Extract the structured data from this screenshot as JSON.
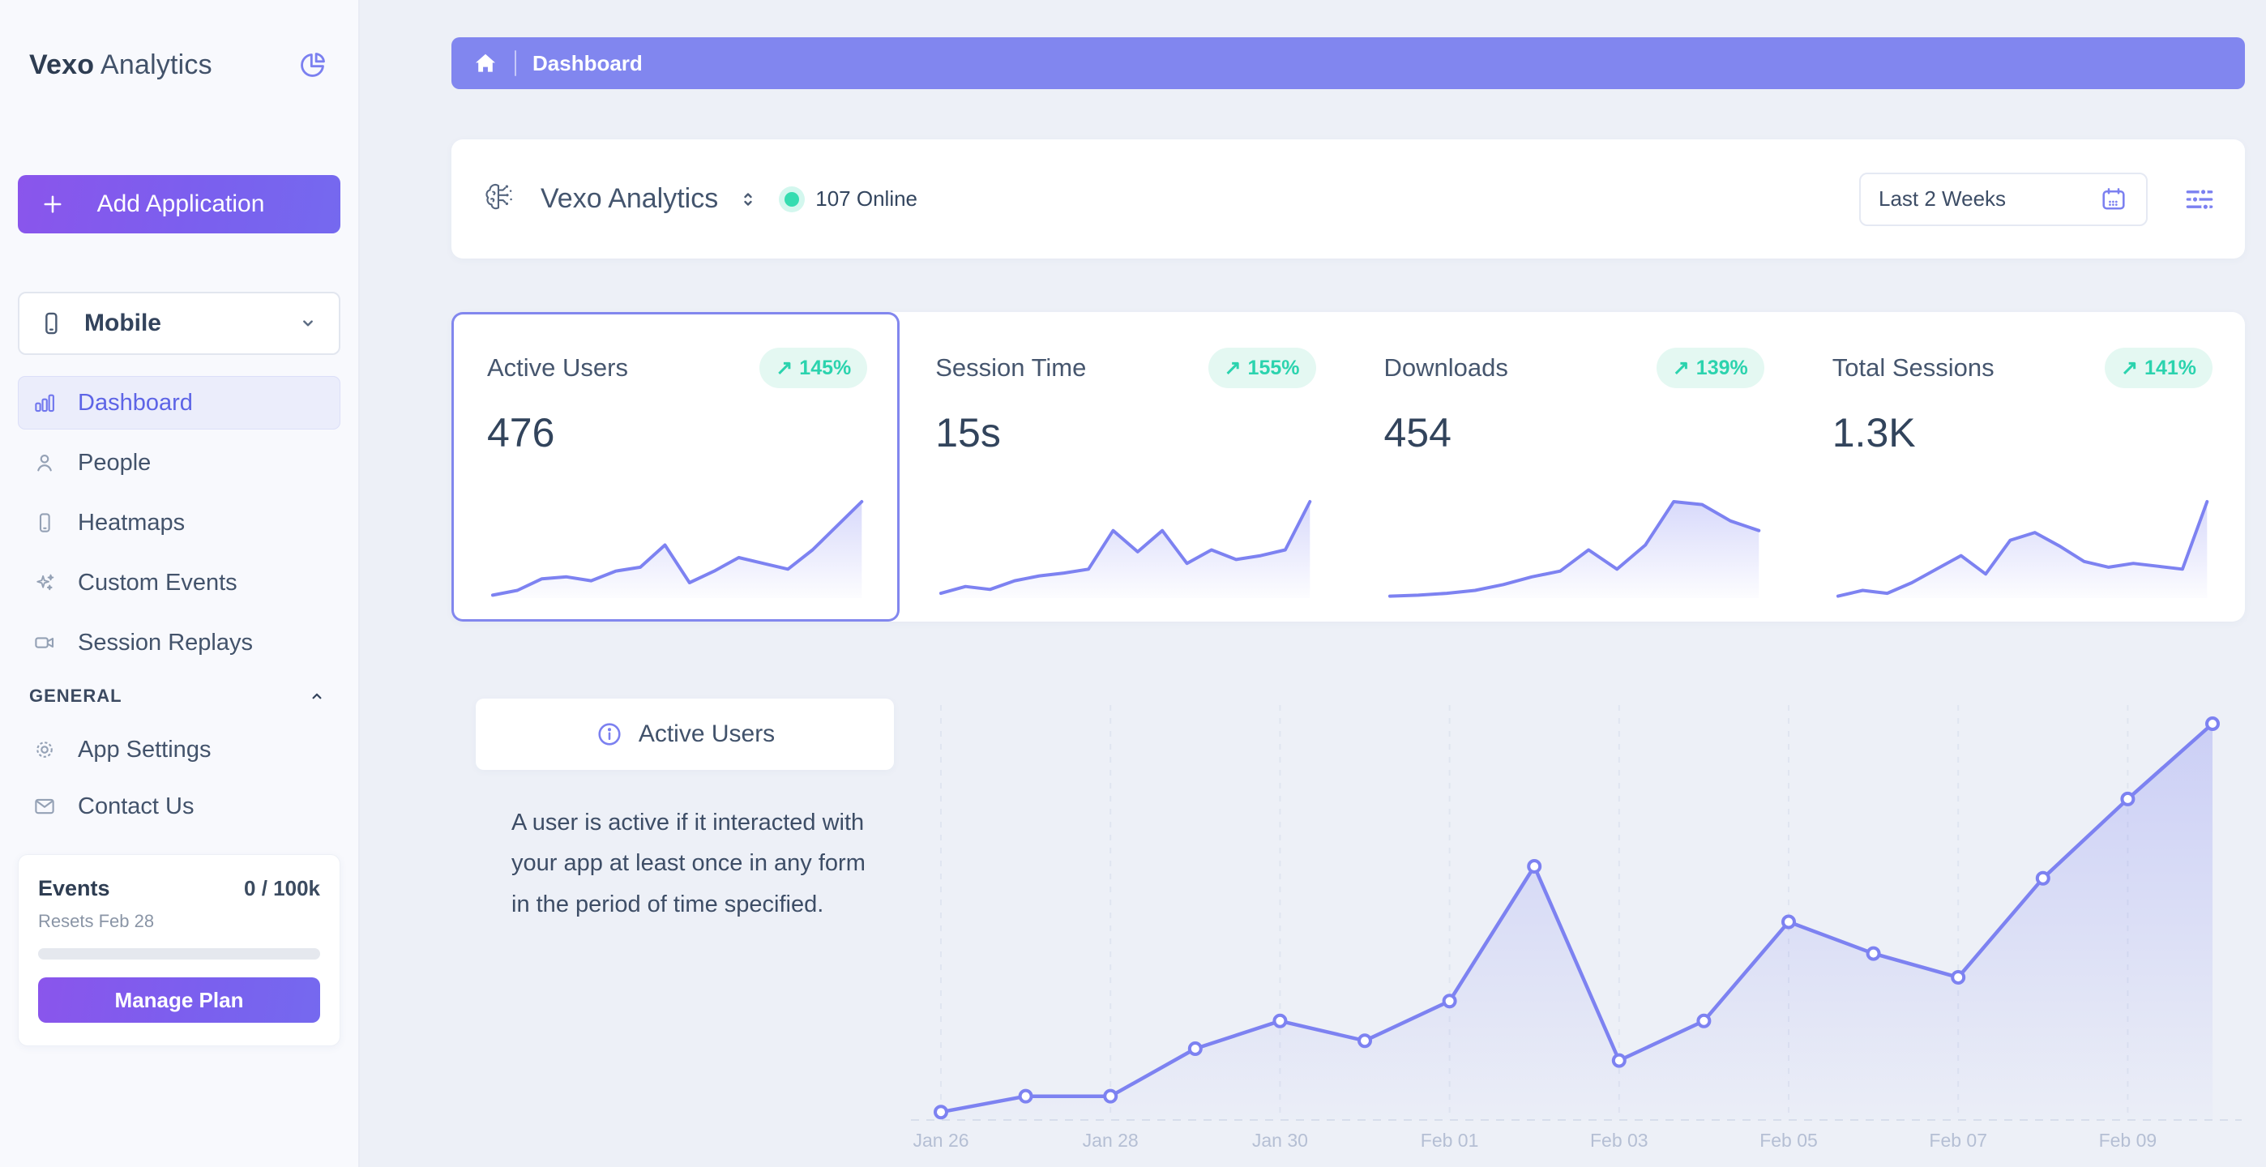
{
  "glyphs": {
    "up_right_arrow": "↗"
  },
  "colors": {
    "accent_purple": "#7b80f0",
    "breadcrumb_purple": "#8186ef",
    "button_gradient_from": "#8a55ec",
    "button_gradient_to": "#7569ef",
    "badge_text_green": "#2bd3ae",
    "badge_bg_mint": "#e4f8f2",
    "online_green": "#35dcb0",
    "text_dark": "#32445c",
    "axis_label_gray": "#b5bfd4"
  },
  "sidebar": {
    "logo_bold": "Vexo",
    "logo_light": "Analytics",
    "add_application": "Add Application",
    "app_selector": "Mobile",
    "nav": [
      {
        "label": "Dashboard",
        "icon": "bar-chart",
        "active": true
      },
      {
        "label": "People",
        "icon": "person",
        "active": false
      },
      {
        "label": "Heatmaps",
        "icon": "phone",
        "active": false
      },
      {
        "label": "Custom Events",
        "icon": "sparkles",
        "active": false
      },
      {
        "label": "Session Replays",
        "icon": "video-camera",
        "active": false
      }
    ],
    "general_label": "GENERAL",
    "general": [
      {
        "label": "App Settings",
        "icon": "gear"
      },
      {
        "label": "Contact Us",
        "icon": "mail"
      }
    ],
    "events": {
      "title": "Events",
      "quota": "0 / 100k",
      "resets": "Resets Feb 28",
      "progress_pct": 0,
      "manage": "Manage Plan"
    }
  },
  "breadcrumb": {
    "page": "Dashboard"
  },
  "header": {
    "app_name": "Vexo Analytics",
    "online": "107 Online",
    "range": "Last 2 Weeks"
  },
  "stats": [
    {
      "title": "Active Users",
      "value": "476",
      "change": "145%",
      "spark": [
        3,
        8,
        20,
        22,
        18,
        28,
        32,
        55,
        16,
        28,
        42,
        36,
        30,
        50,
        75,
        100
      ]
    },
    {
      "title": "Session Time",
      "value": "15s",
      "change": "155%",
      "spark": [
        5,
        12,
        9,
        18,
        23,
        26,
        30,
        70,
        48,
        70,
        36,
        50,
        40,
        44,
        50,
        100
      ]
    },
    {
      "title": "Downloads",
      "value": "454",
      "change": "139%",
      "spark": [
        2,
        3,
        5,
        8,
        14,
        22,
        28,
        50,
        30,
        55,
        100,
        97,
        80,
        70
      ]
    },
    {
      "title": "Total Sessions",
      "value": "1.3K",
      "change": "141%",
      "spark": [
        2,
        8,
        5,
        16,
        30,
        44,
        25,
        60,
        68,
        54,
        38,
        32,
        36,
        33,
        30,
        100
      ]
    }
  ],
  "info_panel": {
    "title": "Active Users",
    "description": "A user is active if it interacted with your app at least once in any form in the period of time specified."
  },
  "chart_data": {
    "type": "line",
    "title": "Active Users (daily, Last 2 Weeks)",
    "x": [
      "Jan 26",
      "Jan 27",
      "Jan 28",
      "Jan 29",
      "Jan 30",
      "Jan 31",
      "Feb 01",
      "Feb 02",
      "Feb 03",
      "Feb 04",
      "Feb 05",
      "Feb 06",
      "Feb 07",
      "Feb 08",
      "Feb 09",
      "Feb 10"
    ],
    "values": [
      2,
      6,
      6,
      18,
      25,
      20,
      30,
      64,
      15,
      25,
      50,
      42,
      36,
      61,
      81,
      100
    ],
    "tick_labels": [
      "Jan 26",
      "Jan 28",
      "Jan 30",
      "Feb 01",
      "Feb 03",
      "Feb 05",
      "Feb 07",
      "Feb 09"
    ],
    "xlabel": "",
    "ylabel": "",
    "units": "relative (y-axis unlabeled, max point = 100)",
    "grid": "vertical-dashed",
    "legend": "none",
    "line_color": "#7d82f1",
    "marker": "open-circle"
  }
}
